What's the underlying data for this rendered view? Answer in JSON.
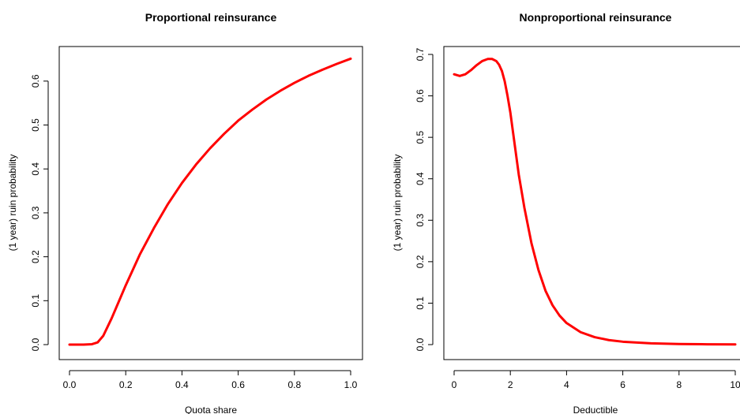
{
  "chart_data": [
    {
      "type": "line",
      "title": "Proportional reinsurance",
      "xlabel": "Quota share",
      "ylabel": "(1 year) ruin probability",
      "xlim": [
        0.0,
        1.0
      ],
      "ylim": [
        0.0,
        0.65
      ],
      "xticks": [
        0.0,
        0.2,
        0.4,
        0.6,
        0.8,
        1.0
      ],
      "xtick_labels": [
        "0.0",
        "0.2",
        "0.4",
        "0.6",
        "0.8",
        "1.0"
      ],
      "yticks": [
        0.0,
        0.1,
        0.2,
        0.3,
        0.4,
        0.5,
        0.6
      ],
      "ytick_labels": [
        "0.0",
        "0.1",
        "0.2",
        "0.3",
        "0.4",
        "0.5",
        "0.6"
      ],
      "grid": false,
      "legend": "none",
      "series": [
        {
          "color": "#ff0000",
          "x": [
            0.0,
            0.05,
            0.08,
            0.1,
            0.12,
            0.15,
            0.2,
            0.25,
            0.3,
            0.35,
            0.4,
            0.45,
            0.5,
            0.55,
            0.6,
            0.65,
            0.7,
            0.75,
            0.8,
            0.85,
            0.9,
            0.95,
            1.0
          ],
          "y": [
            0.0,
            0.0,
            0.001,
            0.005,
            0.02,
            0.06,
            0.135,
            0.205,
            0.265,
            0.32,
            0.368,
            0.41,
            0.447,
            0.48,
            0.51,
            0.535,
            0.558,
            0.578,
            0.596,
            0.612,
            0.626,
            0.639,
            0.651
          ]
        }
      ]
    },
    {
      "type": "line",
      "title": "Nonproportional reinsurance",
      "xlabel": "Deductible",
      "ylabel": "(1 year) ruin probability",
      "xlim": [
        0,
        10
      ],
      "ylim": [
        0.0,
        0.7
      ],
      "xticks": [
        0,
        2,
        4,
        6,
        8,
        10
      ],
      "xtick_labels": [
        "0",
        "2",
        "4",
        "6",
        "8",
        "10"
      ],
      "yticks": [
        0.0,
        0.1,
        0.2,
        0.3,
        0.4,
        0.5,
        0.6,
        0.7
      ],
      "ytick_labels": [
        "0.0",
        "0.1",
        "0.2",
        "0.3",
        "0.4",
        "0.5",
        "0.6",
        "0.7"
      ],
      "grid": false,
      "legend": "none",
      "series": [
        {
          "color": "#ff0000",
          "x": [
            0.0,
            0.2,
            0.4,
            0.6,
            0.8,
            1.0,
            1.2,
            1.35,
            1.5,
            1.6,
            1.7,
            1.8,
            1.9,
            2.0,
            2.1,
            2.2,
            2.3,
            2.5,
            2.75,
            3.0,
            3.25,
            3.5,
            3.75,
            4.0,
            4.5,
            5.0,
            5.5,
            6.0,
            7.0,
            8.0,
            9.0,
            10.0
          ],
          "y": [
            0.652,
            0.648,
            0.652,
            0.662,
            0.674,
            0.684,
            0.689,
            0.689,
            0.684,
            0.675,
            0.66,
            0.635,
            0.6,
            0.56,
            0.51,
            0.46,
            0.41,
            0.33,
            0.245,
            0.18,
            0.13,
            0.095,
            0.07,
            0.052,
            0.03,
            0.018,
            0.011,
            0.007,
            0.003,
            0.0015,
            0.0008,
            0.0005
          ]
        }
      ]
    }
  ]
}
